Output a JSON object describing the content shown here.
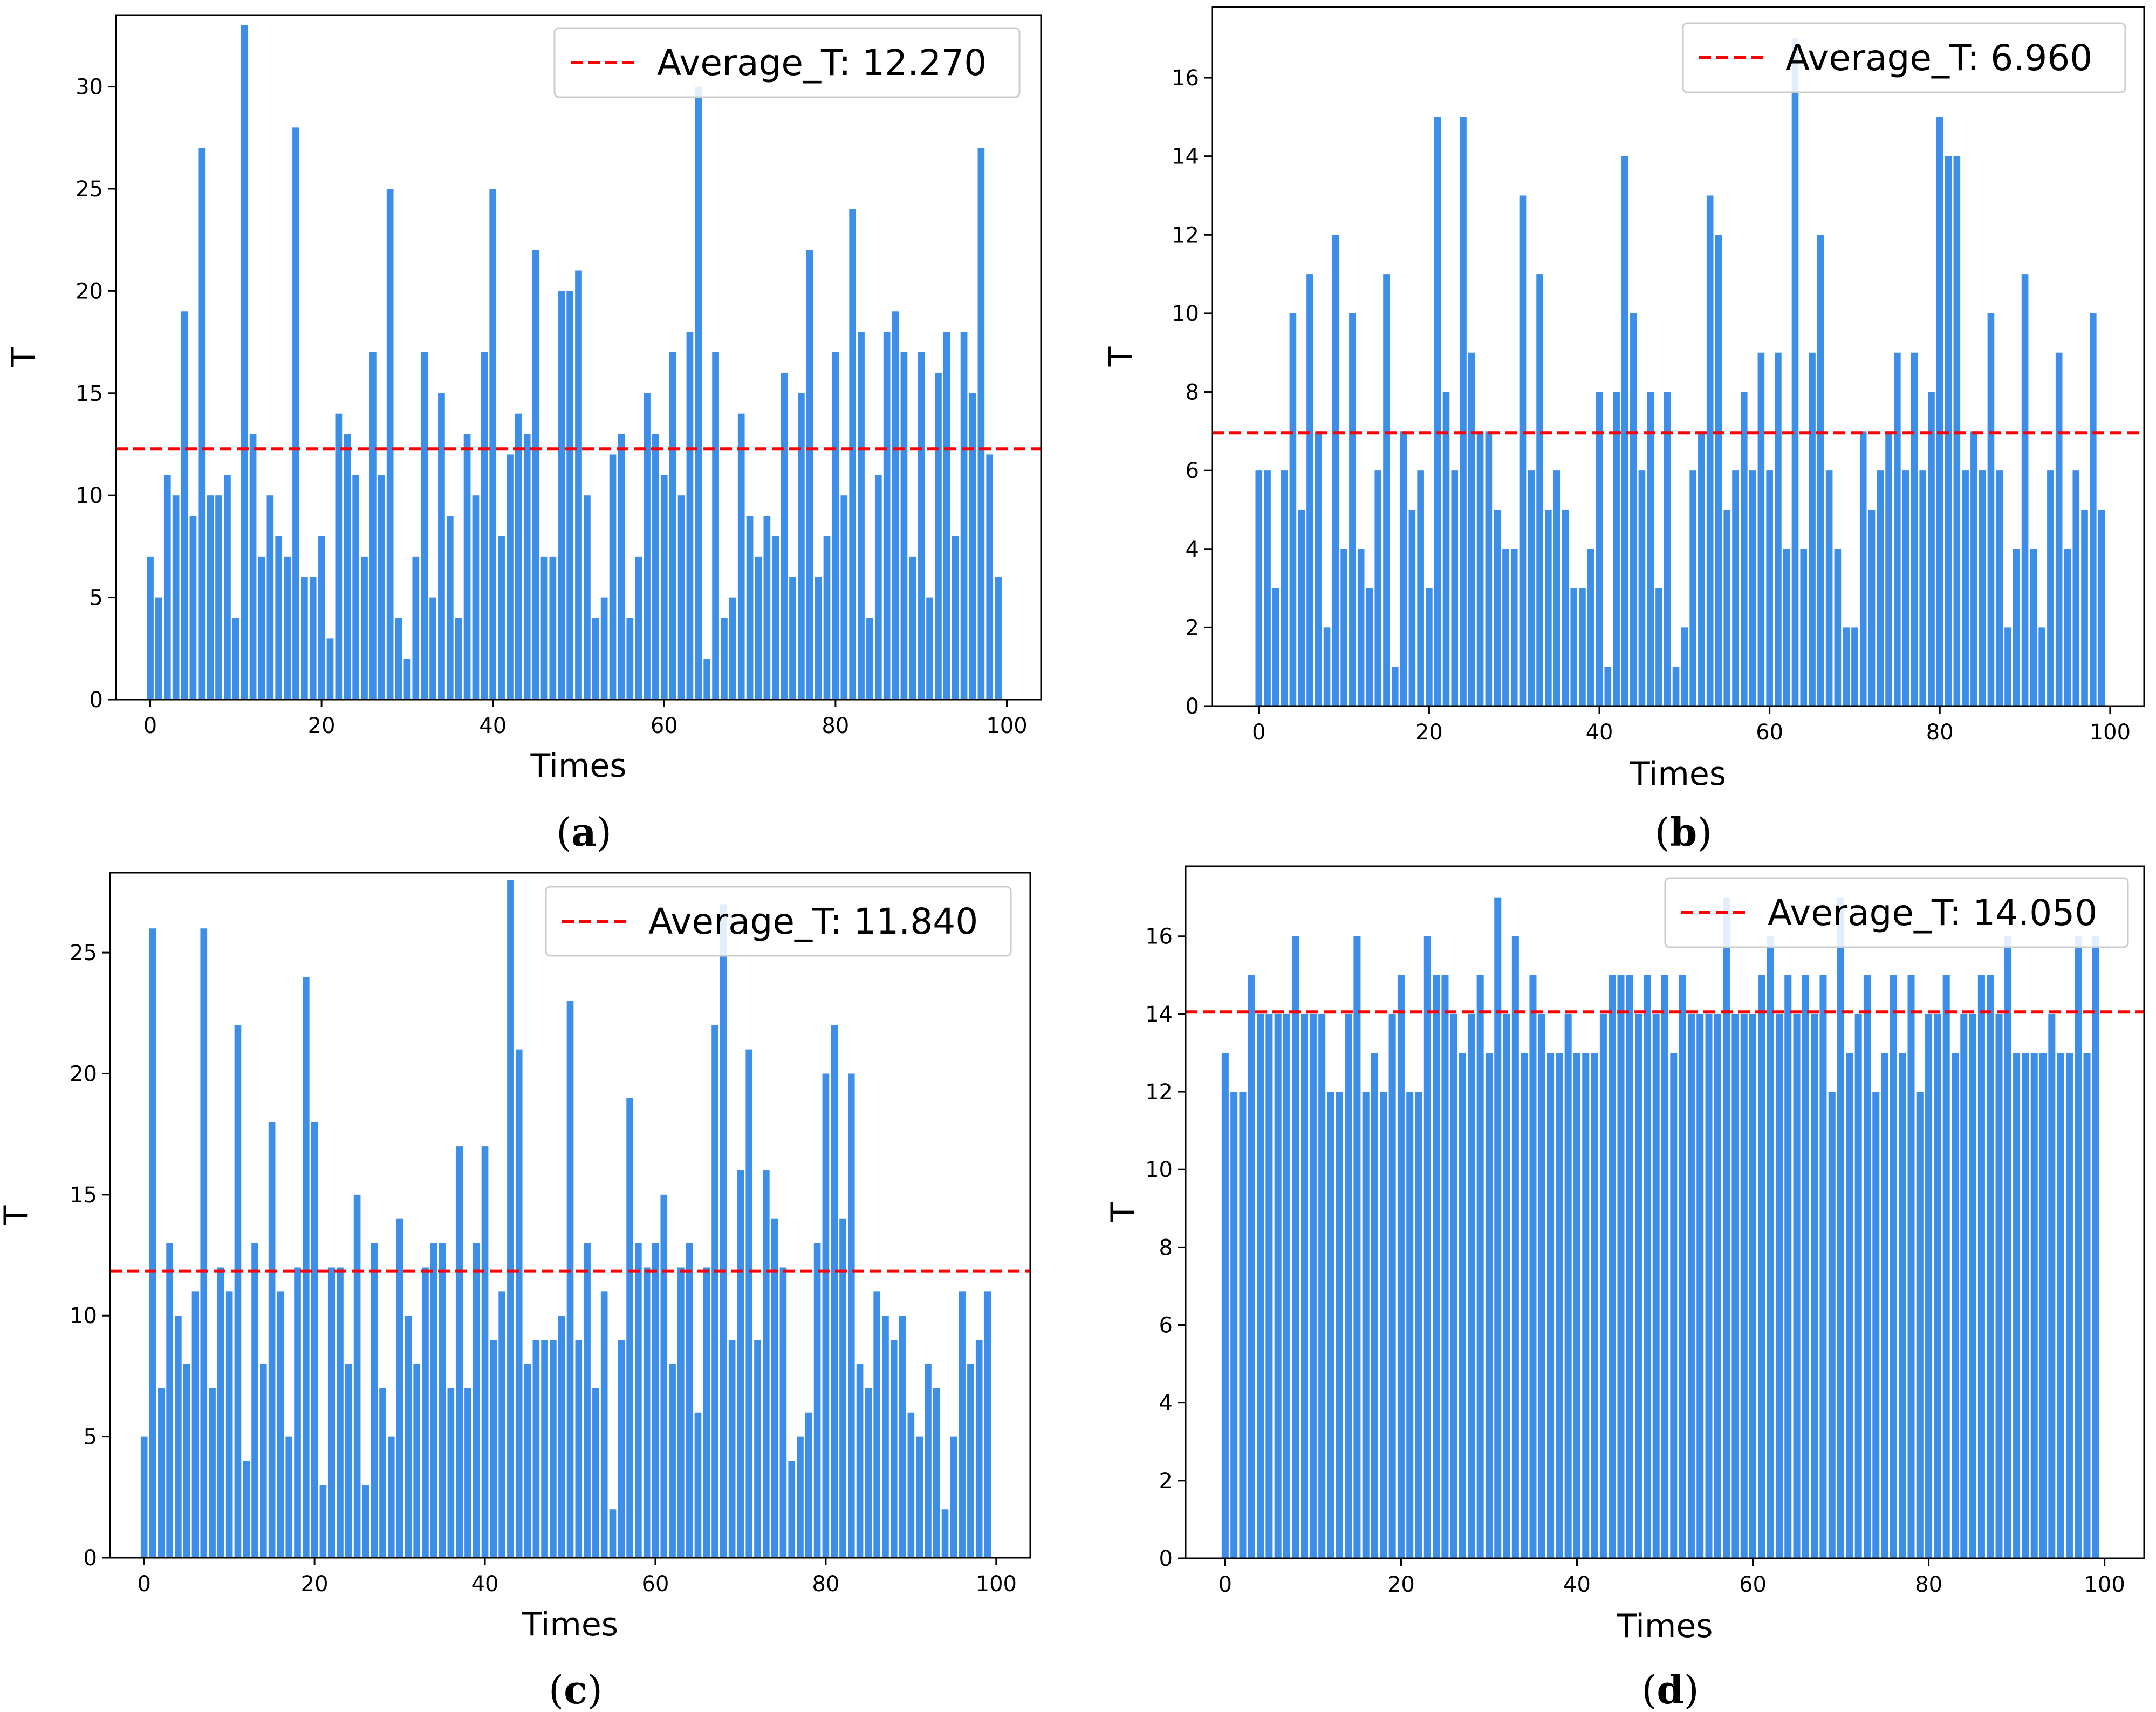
{
  "chart_data": [
    {
      "panel": "a",
      "type": "bar",
      "caption_letter": "a",
      "caption_left": "(",
      "caption_right": ")",
      "xlabel": "Times",
      "ylabel": "T",
      "xlim": [
        -4,
        104
      ],
      "ylim": [
        0,
        33.5
      ],
      "xticks": [
        0,
        20,
        40,
        60,
        80,
        100
      ],
      "yticks": [
        0,
        5,
        10,
        15,
        20,
        25,
        30
      ],
      "bar_color": "#3d8ee8",
      "average_color": "#ff0000",
      "legend_label": "Average_T: 12.270",
      "legend_location": "upper right",
      "average": 12.27,
      "x": [
        0,
        1,
        2,
        3,
        4,
        5,
        6,
        7,
        8,
        9,
        10,
        11,
        12,
        13,
        14,
        15,
        16,
        17,
        18,
        19,
        20,
        21,
        22,
        23,
        24,
        25,
        26,
        27,
        28,
        29,
        30,
        31,
        32,
        33,
        34,
        35,
        36,
        37,
        38,
        39,
        40,
        41,
        42,
        43,
        44,
        45,
        46,
        47,
        48,
        49,
        50,
        51,
        52,
        53,
        54,
        55,
        56,
        57,
        58,
        59,
        60,
        61,
        62,
        63,
        64,
        65,
        66,
        67,
        68,
        69,
        70,
        71,
        72,
        73,
        74,
        75,
        76,
        77,
        78,
        79,
        80,
        81,
        82,
        83,
        84,
        85,
        86,
        87,
        88,
        89,
        90,
        91,
        92,
        93,
        94,
        95,
        96,
        97,
        98,
        99
      ],
      "values": [
        7,
        5,
        11,
        10,
        19,
        9,
        27,
        10,
        10,
        11,
        4,
        33,
        13,
        7,
        10,
        8,
        7,
        28,
        6,
        6,
        8,
        3,
        14,
        13,
        11,
        7,
        17,
        11,
        25,
        4,
        2,
        7,
        17,
        5,
        15,
        9,
        4,
        13,
        10,
        17,
        25,
        8,
        12,
        14,
        13,
        22,
        7,
        7,
        20,
        20,
        21,
        10,
        4,
        5,
        12,
        13,
        4,
        7,
        15,
        13,
        11,
        17,
        10,
        18,
        30,
        2,
        17,
        4,
        5,
        14,
        9,
        7,
        9,
        8,
        16,
        6,
        15,
        22,
        6,
        8,
        17,
        10,
        24,
        18,
        4,
        11,
        18,
        19,
        17,
        7,
        17,
        5,
        16,
        18,
        8,
        18,
        15,
        27,
        12,
        6
      ]
    },
    {
      "panel": "b",
      "type": "bar",
      "caption_letter": "b",
      "caption_left": "(",
      "caption_right": ")",
      "xlabel": "Times",
      "ylabel": "T",
      "xlim": [
        -5.5,
        104
      ],
      "ylim": [
        0,
        17.8
      ],
      "xticks": [
        0,
        20,
        40,
        60,
        80,
        100
      ],
      "yticks": [
        0,
        2,
        4,
        6,
        8,
        10,
        12,
        14,
        16
      ],
      "bar_color": "#3d8ee8",
      "average_color": "#ff0000",
      "legend_label": "Average_T: 6.960",
      "legend_location": "upper right",
      "average": 6.96,
      "x": [
        0,
        1,
        2,
        3,
        4,
        5,
        6,
        7,
        8,
        9,
        10,
        11,
        12,
        13,
        14,
        15,
        16,
        17,
        18,
        19,
        20,
        21,
        22,
        23,
        24,
        25,
        26,
        27,
        28,
        29,
        30,
        31,
        32,
        33,
        34,
        35,
        36,
        37,
        38,
        39,
        40,
        41,
        42,
        43,
        44,
        45,
        46,
        47,
        48,
        49,
        50,
        51,
        52,
        53,
        54,
        55,
        56,
        57,
        58,
        59,
        60,
        61,
        62,
        63,
        64,
        65,
        66,
        67,
        68,
        69,
        70,
        71,
        72,
        73,
        74,
        75,
        76,
        77,
        78,
        79,
        80,
        81,
        82,
        83,
        84,
        85,
        86,
        87,
        88,
        89,
        90,
        91,
        92,
        93,
        94,
        95,
        96,
        97,
        98,
        99
      ],
      "values": [
        6,
        6,
        3,
        6,
        10,
        5,
        11,
        7,
        2,
        12,
        4,
        10,
        4,
        3,
        6,
        11,
        1,
        7,
        5,
        6,
        3,
        15,
        8,
        6,
        15,
        9,
        7,
        7,
        5,
        4,
        4,
        13,
        6,
        11,
        5,
        6,
        5,
        3,
        3,
        4,
        8,
        1,
        8,
        14,
        10,
        6,
        8,
        3,
        8,
        1,
        2,
        6,
        7,
        13,
        12,
        5,
        6,
        8,
        6,
        9,
        6,
        9,
        4,
        17,
        4,
        9,
        12,
        6,
        4,
        2,
        2,
        7,
        5,
        6,
        7,
        9,
        6,
        9,
        6,
        8,
        15,
        14,
        14,
        6,
        7,
        6,
        10,
        6,
        2,
        4,
        11,
        4,
        2,
        6,
        9,
        4,
        6,
        5,
        10,
        5
      ]
    },
    {
      "panel": "c",
      "type": "bar",
      "caption_letter": "c",
      "caption_left": "(",
      "caption_right": ")",
      "xlabel": "Times",
      "ylabel": "T",
      "xlim": [
        -4,
        104
      ],
      "ylim": [
        0,
        28.3
      ],
      "xticks": [
        0,
        20,
        40,
        60,
        80,
        100
      ],
      "yticks": [
        0,
        5,
        10,
        15,
        20,
        25
      ],
      "bar_color": "#3d8ee8",
      "average_color": "#ff0000",
      "legend_label": "Average_T: 11.840",
      "legend_location": "upper right",
      "average": 11.84,
      "x": [
        0,
        1,
        2,
        3,
        4,
        5,
        6,
        7,
        8,
        9,
        10,
        11,
        12,
        13,
        14,
        15,
        16,
        17,
        18,
        19,
        20,
        21,
        22,
        23,
        24,
        25,
        26,
        27,
        28,
        29,
        30,
        31,
        32,
        33,
        34,
        35,
        36,
        37,
        38,
        39,
        40,
        41,
        42,
        43,
        44,
        45,
        46,
        47,
        48,
        49,
        50,
        51,
        52,
        53,
        54,
        55,
        56,
        57,
        58,
        59,
        60,
        61,
        62,
        63,
        64,
        65,
        66,
        67,
        68,
        69,
        70,
        71,
        72,
        73,
        74,
        75,
        76,
        77,
        78,
        79,
        80,
        81,
        82,
        83,
        84,
        85,
        86,
        87,
        88,
        89,
        90,
        91,
        92,
        93,
        94,
        95,
        96,
        97,
        98,
        99
      ],
      "values": [
        5,
        26,
        7,
        13,
        10,
        8,
        11,
        26,
        7,
        12,
        11,
        22,
        4,
        13,
        8,
        18,
        11,
        5,
        12,
        24,
        18,
        3,
        12,
        12,
        8,
        15,
        3,
        13,
        7,
        5,
        14,
        10,
        8,
        12,
        13,
        13,
        7,
        17,
        7,
        13,
        17,
        9,
        11,
        28,
        21,
        8,
        9,
        9,
        9,
        10,
        23,
        9,
        13,
        7,
        11,
        2,
        9,
        19,
        13,
        12,
        13,
        15,
        8,
        12,
        13,
        6,
        12,
        22,
        27,
        9,
        16,
        21,
        9,
        16,
        14,
        12,
        4,
        5,
        6,
        13,
        20,
        22,
        14,
        20,
        8,
        7,
        11,
        10,
        9,
        10,
        6,
        5,
        8,
        7,
        2,
        5,
        11,
        8,
        9,
        11
      ]
    },
    {
      "panel": "d",
      "type": "bar",
      "caption_letter": "d",
      "caption_left": "(",
      "caption_right": ")",
      "xlabel": "Times",
      "ylabel": "T",
      "xlim": [
        -4.5,
        104.5
      ],
      "ylim": [
        0,
        17.8
      ],
      "xticks": [
        0,
        20,
        40,
        60,
        80,
        100
      ],
      "yticks": [
        0,
        2,
        4,
        6,
        8,
        10,
        12,
        14,
        16
      ],
      "bar_color": "#3d8ee8",
      "average_color": "#ff0000",
      "legend_label": "Average_T: 14.050",
      "legend_location": "upper right",
      "average": 14.05,
      "x": [
        0,
        1,
        2,
        3,
        4,
        5,
        6,
        7,
        8,
        9,
        10,
        11,
        12,
        13,
        14,
        15,
        16,
        17,
        18,
        19,
        20,
        21,
        22,
        23,
        24,
        25,
        26,
        27,
        28,
        29,
        30,
        31,
        32,
        33,
        34,
        35,
        36,
        37,
        38,
        39,
        40,
        41,
        42,
        43,
        44,
        45,
        46,
        47,
        48,
        49,
        50,
        51,
        52,
        53,
        54,
        55,
        56,
        57,
        58,
        59,
        60,
        61,
        62,
        63,
        64,
        65,
        66,
        67,
        68,
        69,
        70,
        71,
        72,
        73,
        74,
        75,
        76,
        77,
        78,
        79,
        80,
        81,
        82,
        83,
        84,
        85,
        86,
        87,
        88,
        89,
        90,
        91,
        92,
        93,
        94,
        95,
        96,
        97,
        98,
        99
      ],
      "values": [
        13,
        12,
        12,
        15,
        14,
        14,
        14,
        14,
        16,
        14,
        14,
        14,
        12,
        12,
        14,
        16,
        12,
        13,
        12,
        14,
        15,
        12,
        12,
        16,
        15,
        15,
        14,
        13,
        14,
        15,
        13,
        17,
        14,
        16,
        13,
        15,
        14,
        13,
        13,
        14,
        13,
        13,
        13,
        14,
        15,
        15,
        15,
        14,
        15,
        14,
        15,
        13,
        15,
        14,
        14,
        14,
        14,
        17,
        14,
        14,
        14,
        15,
        16,
        14,
        15,
        14,
        15,
        14,
        15,
        12,
        17,
        13,
        14,
        15,
        12,
        13,
        15,
        13,
        15,
        12,
        14,
        14,
        15,
        13,
        14,
        14,
        15,
        15,
        14,
        16,
        13,
        13,
        13,
        13,
        14,
        13,
        13,
        16,
        13,
        16
      ]
    }
  ]
}
